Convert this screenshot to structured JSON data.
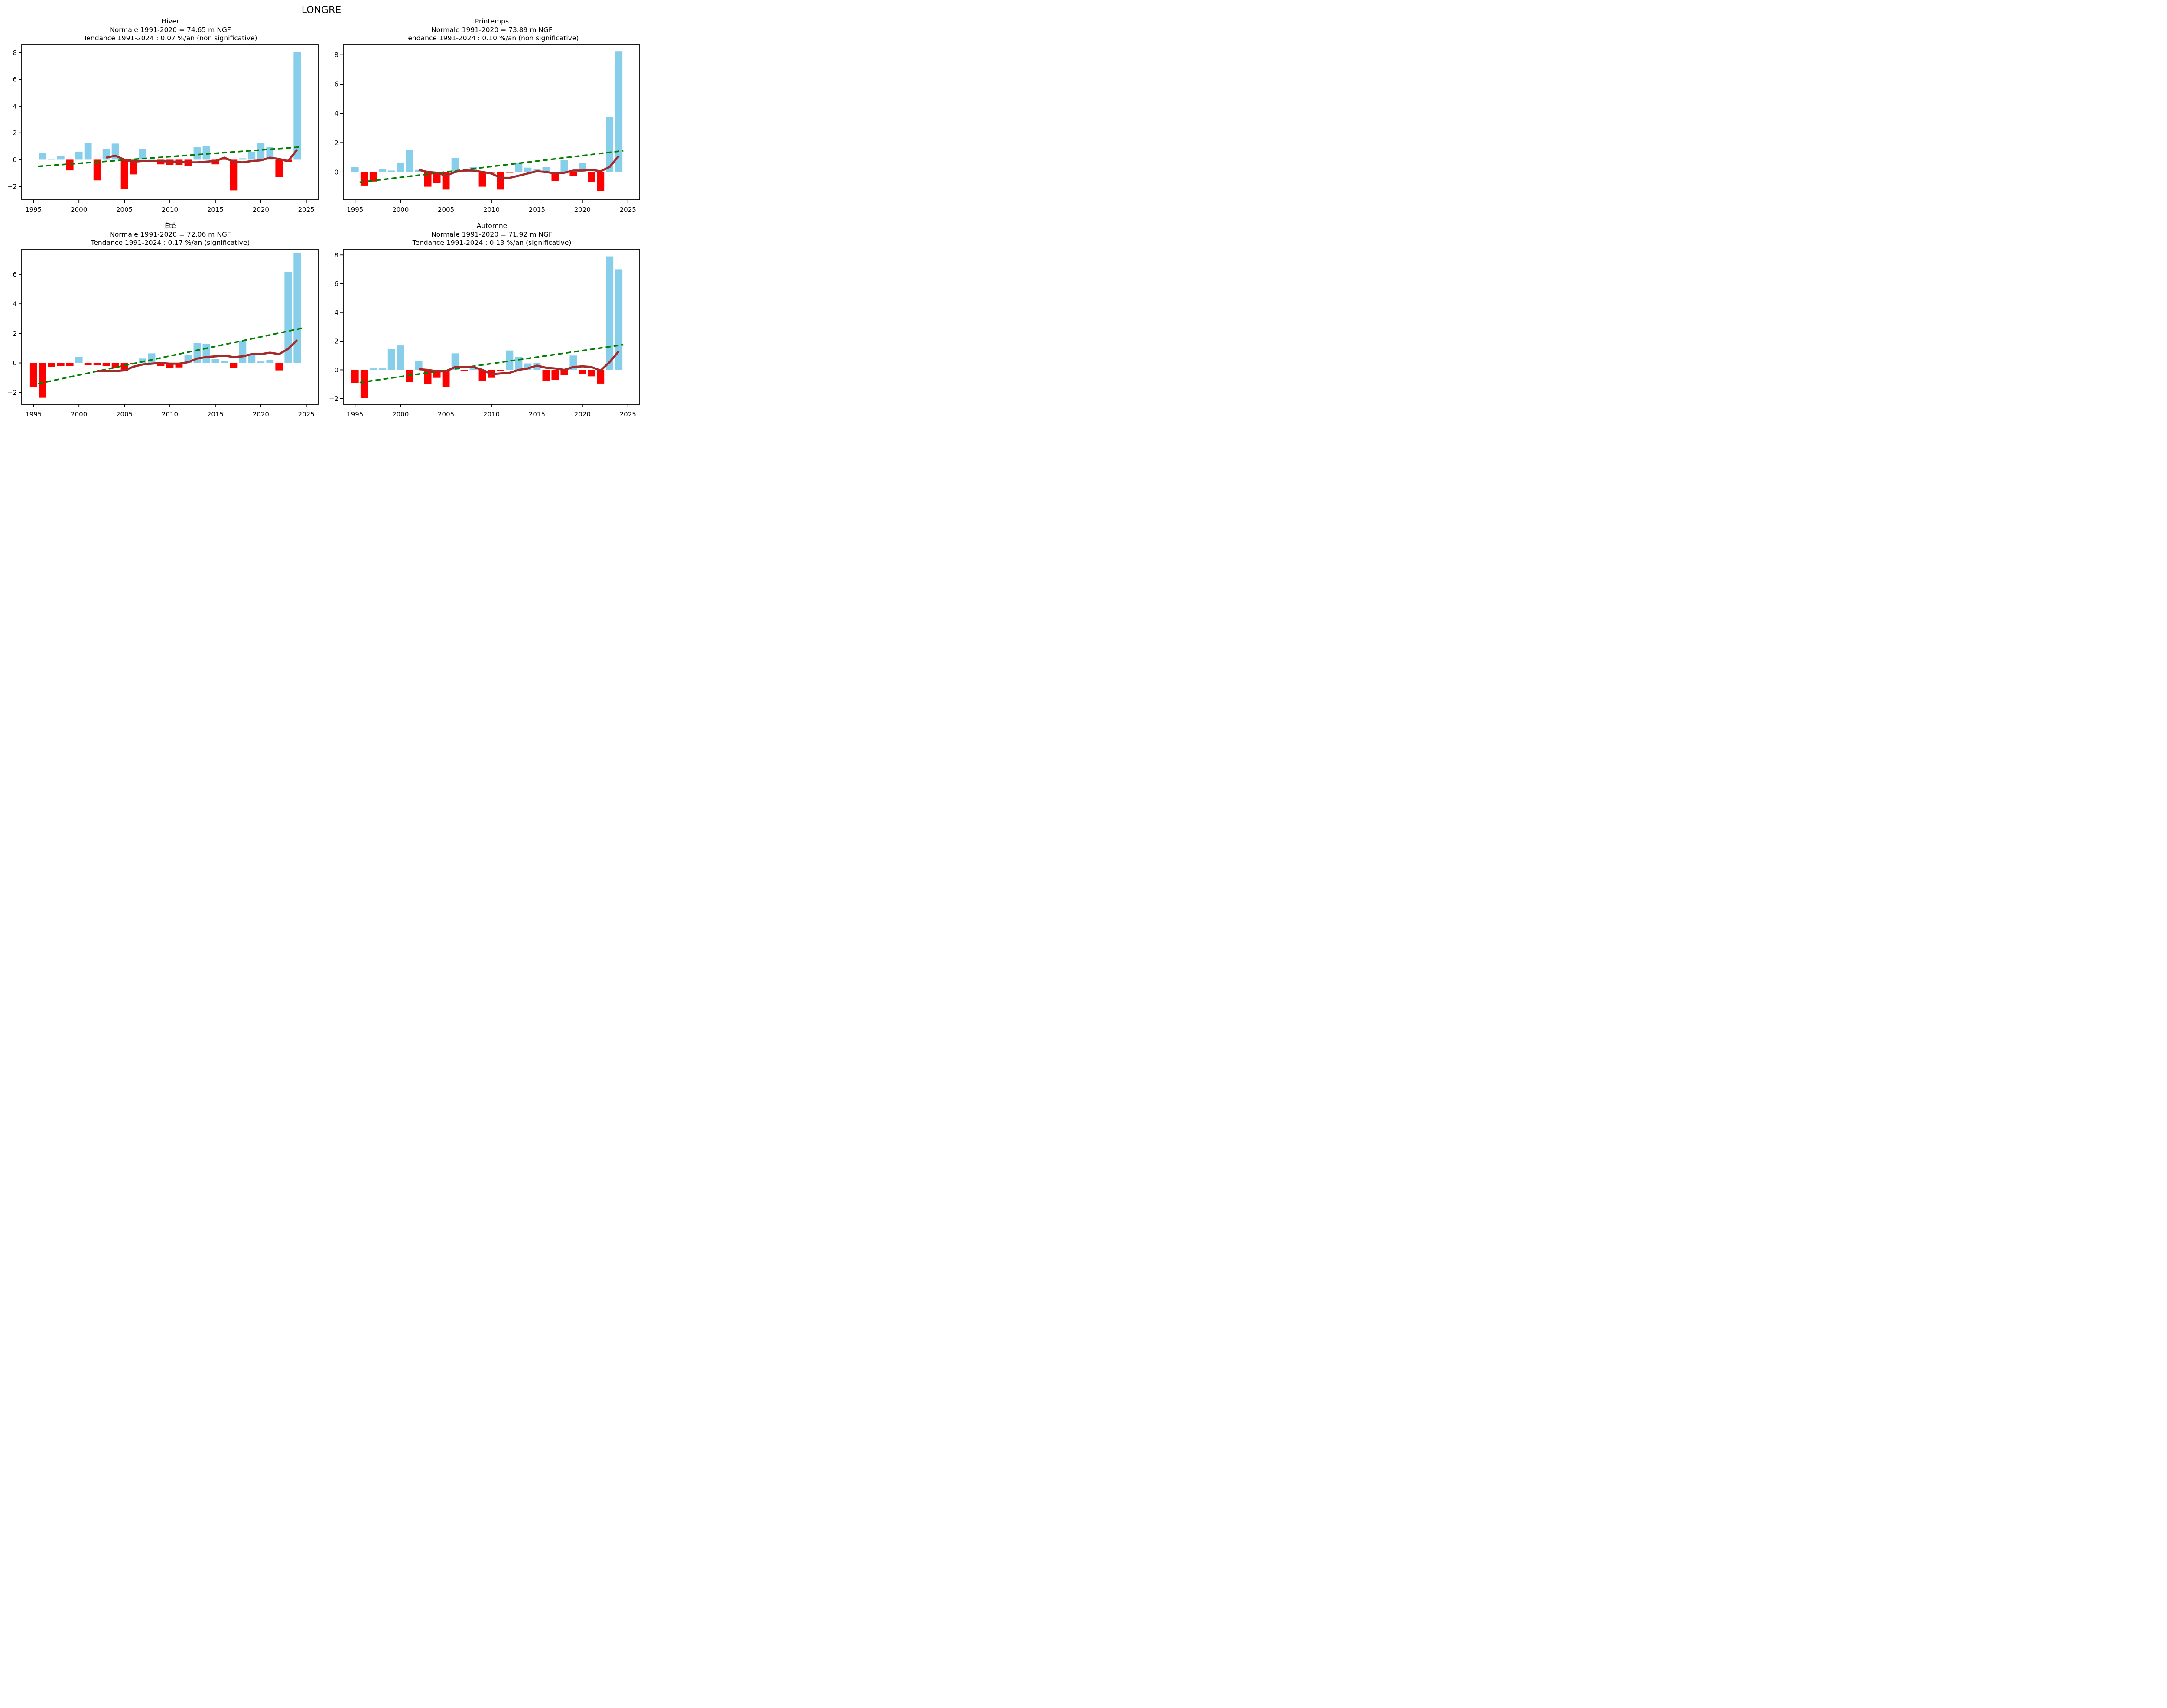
{
  "suptitle": "LONGRE",
  "colors": {
    "background": "#ffffff",
    "bar_positive": "#87ceeb",
    "bar_negative": "#ff0000",
    "trend_line": "#008000",
    "smooth_line": "#a52a2a",
    "axis": "#000000",
    "text": "#000000"
  },
  "chart_data": [
    {
      "type": "bar",
      "title": "Hiver",
      "subtitle_normale": "Normale 1991-2020 = 74.65 m NGF",
      "subtitle_tendance": "Tendance 1991-2024 : 0.07 %/an (non significative)",
      "xlabel": "",
      "ylabel": "",
      "xlim": [
        1993.7,
        2026.3
      ],
      "ylim": [
        -3.0,
        8.6
      ],
      "xticks": [
        1995,
        2000,
        2005,
        2010,
        2015,
        2020,
        2025
      ],
      "yticks": [
        -2,
        0,
        2,
        4,
        6,
        8
      ],
      "years": [
        1995,
        1996,
        1997,
        1998,
        1999,
        2000,
        2001,
        2002,
        2003,
        2004,
        2005,
        2006,
        2007,
        2008,
        2009,
        2010,
        2011,
        2012,
        2013,
        2014,
        2015,
        2016,
        2017,
        2018,
        2019,
        2020,
        2021,
        2022,
        2023,
        2024
      ],
      "values": [
        0.0,
        0.5,
        0.05,
        0.3,
        -0.8,
        0.6,
        1.25,
        -1.55,
        0.8,
        1.2,
        -2.2,
        -1.1,
        0.8,
        0.05,
        -0.35,
        -0.4,
        -0.4,
        -0.45,
        0.95,
        1.0,
        -0.35,
        -0.05,
        -2.3,
        0.1,
        0.6,
        1.25,
        0.95,
        -1.3,
        -0.15,
        8.05
      ],
      "trend": {
        "x": [
          1995.5,
          2024.5
        ],
        "y": [
          -0.5,
          0.95
        ]
      },
      "smooth": {
        "years": [
          2003,
          2004,
          2005,
          2006,
          2007,
          2008,
          2009,
          2010,
          2011,
          2012,
          2013,
          2014,
          2015,
          2016,
          2017,
          2018,
          2019,
          2020,
          2021,
          2022,
          2023,
          2024
        ],
        "values": [
          0.15,
          0.3,
          0.0,
          -0.15,
          -0.1,
          -0.1,
          -0.1,
          -0.15,
          -0.15,
          -0.2,
          -0.2,
          -0.15,
          -0.1,
          0.15,
          -0.15,
          -0.2,
          -0.1,
          -0.05,
          0.15,
          0.05,
          -0.1,
          0.75
        ]
      }
    },
    {
      "type": "bar",
      "title": "Printemps",
      "subtitle_normale": "Normale 1991-2020 = 73.89 m NGF",
      "subtitle_tendance": "Tendance 1991-2024 : 0.10 %/an (non significative)",
      "xlabel": "",
      "ylabel": "",
      "xlim": [
        1993.7,
        2026.3
      ],
      "ylim": [
        -1.9,
        8.7
      ],
      "xticks": [
        1995,
        2000,
        2005,
        2010,
        2015,
        2020,
        2025
      ],
      "yticks": [
        0,
        2,
        4,
        6,
        8
      ],
      "years": [
        1995,
        1996,
        1997,
        1998,
        1999,
        2000,
        2001,
        2002,
        2003,
        2004,
        2005,
        2006,
        2007,
        2008,
        2009,
        2010,
        2011,
        2012,
        2013,
        2014,
        2015,
        2016,
        2017,
        2018,
        2019,
        2020,
        2021,
        2022,
        2023,
        2024
      ],
      "values": [
        0.35,
        -0.95,
        -0.65,
        0.2,
        0.1,
        0.65,
        1.5,
        0.15,
        -1.0,
        -0.75,
        -1.2,
        0.95,
        0.1,
        0.35,
        -1.0,
        -0.05,
        -1.2,
        -0.05,
        0.65,
        0.3,
        0.2,
        0.35,
        -0.6,
        0.8,
        -0.25,
        0.6,
        -0.7,
        -1.3,
        3.75,
        8.25
      ],
      "trend": {
        "x": [
          1995.5,
          2024.5
        ],
        "y": [
          -0.7,
          1.45
        ]
      },
      "smooth": {
        "years": [
          2002,
          2003,
          2004,
          2005,
          2006,
          2007,
          2008,
          2009,
          2010,
          2011,
          2012,
          2013,
          2014,
          2015,
          2016,
          2017,
          2018,
          2019,
          2020,
          2021,
          2022,
          2023,
          2024
        ],
        "values": [
          0.15,
          0.0,
          -0.05,
          -0.25,
          0.0,
          0.1,
          0.1,
          0.0,
          -0.1,
          -0.4,
          -0.4,
          -0.25,
          -0.1,
          0.05,
          0.0,
          -0.1,
          -0.05,
          0.1,
          0.1,
          0.15,
          0.05,
          0.35,
          1.1
        ]
      }
    },
    {
      "type": "bar",
      "title": "Été",
      "subtitle_normale": "Normale 1991-2020 = 72.06 m NGF",
      "subtitle_tendance": "Tendance 1991-2024 : 0.17 %/an (significative)",
      "xlabel": "",
      "ylabel": "",
      "xlim": [
        1993.7,
        2026.3
      ],
      "ylim": [
        -2.8,
        7.7
      ],
      "xticks": [
        1995,
        2000,
        2005,
        2010,
        2015,
        2020,
        2025
      ],
      "yticks": [
        -2,
        0,
        2,
        4,
        6
      ],
      "years": [
        1995,
        1996,
        1997,
        1998,
        1999,
        2000,
        2001,
        2002,
        2003,
        2004,
        2005,
        2006,
        2007,
        2008,
        2009,
        2010,
        2011,
        2012,
        2013,
        2014,
        2015,
        2016,
        2017,
        2018,
        2019,
        2020,
        2021,
        2022,
        2023,
        2024
      ],
      "values": [
        -1.6,
        -2.35,
        -0.25,
        -0.2,
        -0.2,
        0.4,
        -0.15,
        -0.15,
        -0.2,
        -0.35,
        -0.55,
        -0.05,
        0.3,
        0.65,
        -0.2,
        -0.35,
        -0.3,
        0.55,
        1.35,
        1.3,
        0.25,
        0.15,
        -0.35,
        1.5,
        0.55,
        0.1,
        0.2,
        -0.5,
        6.15,
        7.45
      ],
      "trend": {
        "x": [
          1995.5,
          2024.5
        ],
        "y": [
          -1.4,
          2.35
        ]
      },
      "smooth": {
        "years": [
          2002,
          2003,
          2004,
          2005,
          2006,
          2007,
          2008,
          2009,
          2010,
          2011,
          2012,
          2013,
          2014,
          2015,
          2016,
          2017,
          2018,
          2019,
          2020,
          2021,
          2022,
          2023,
          2024
        ],
        "values": [
          -0.55,
          -0.55,
          -0.55,
          -0.5,
          -0.25,
          -0.1,
          -0.05,
          0.0,
          -0.05,
          -0.05,
          0.05,
          0.3,
          0.4,
          0.45,
          0.5,
          0.4,
          0.45,
          0.6,
          0.6,
          0.7,
          0.6,
          0.95,
          1.55
        ]
      }
    },
    {
      "type": "bar",
      "title": "Automne",
      "subtitle_normale": "Normale 1991-2020 = 71.92 m NGF",
      "subtitle_tendance": "Tendance 1991-2024 : 0.13 %/an (significative)",
      "xlabel": "",
      "ylabel": "",
      "xlim": [
        1993.7,
        2026.3
      ],
      "ylim": [
        -2.4,
        8.4
      ],
      "xticks": [
        1995,
        2000,
        2005,
        2010,
        2015,
        2020,
        2025
      ],
      "yticks": [
        -2,
        0,
        2,
        4,
        6,
        8
      ],
      "years": [
        1995,
        1996,
        1997,
        1998,
        1999,
        2000,
        2001,
        2002,
        2003,
        2004,
        2005,
        2006,
        2007,
        2008,
        2009,
        2010,
        2011,
        2012,
        2013,
        2014,
        2015,
        2016,
        2017,
        2018,
        2019,
        2020,
        2021,
        2022,
        2023,
        2024
      ],
      "values": [
        -0.9,
        -1.95,
        0.1,
        0.1,
        1.45,
        1.7,
        -0.85,
        0.6,
        -1.0,
        -0.55,
        -1.2,
        1.15,
        -0.05,
        0.1,
        -0.75,
        -0.55,
        -0.05,
        1.35,
        0.9,
        0.45,
        0.5,
        -0.8,
        -0.7,
        -0.35,
        1.0,
        -0.3,
        -0.45,
        -0.95,
        7.9,
        7.0
      ],
      "trend": {
        "x": [
          1995.5,
          2024.5
        ],
        "y": [
          -0.88,
          1.75
        ]
      },
      "smooth": {
        "years": [
          2002,
          2003,
          2004,
          2005,
          2006,
          2007,
          2008,
          2009,
          2010,
          2011,
          2012,
          2013,
          2014,
          2015,
          2016,
          2017,
          2018,
          2019,
          2020,
          2021,
          2022,
          2023,
          2024
        ],
        "values": [
          0.05,
          0.0,
          -0.1,
          -0.1,
          0.2,
          0.2,
          0.2,
          0.0,
          -0.3,
          -0.25,
          -0.2,
          0.0,
          0.1,
          0.3,
          0.15,
          0.1,
          0.0,
          0.2,
          0.25,
          0.2,
          -0.05,
          0.55,
          1.3
        ]
      }
    }
  ]
}
